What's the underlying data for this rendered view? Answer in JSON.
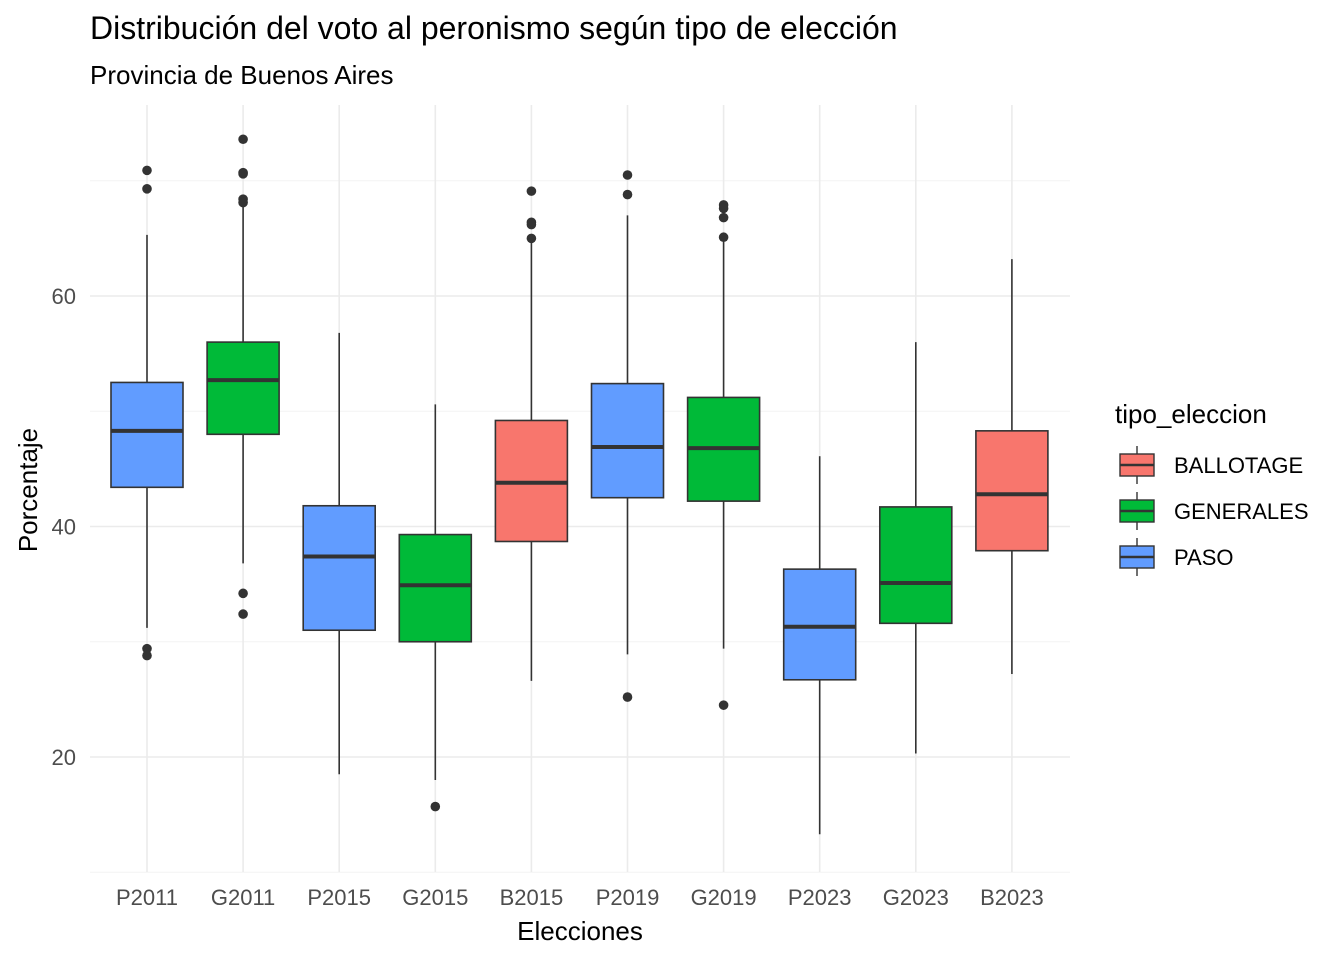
{
  "chart_data": {
    "type": "boxplot",
    "title": "Distribución del voto al peronismo según tipo de elección",
    "subtitle": "Provincia de Buenos Aires",
    "xlabel": "Elecciones",
    "ylabel": "Porcentaje",
    "ylim": [
      10,
      75
    ],
    "yticks": [
      20,
      40,
      60
    ],
    "grid": true,
    "legend": {
      "title": "tipo_eleccion",
      "position": "right",
      "items": [
        {
          "label": "BALLOTAGE",
          "color": "#F8766D"
        },
        {
          "label": "GENERALES",
          "color": "#00BA38"
        },
        {
          "label": "PASO",
          "color": "#619CFF"
        }
      ]
    },
    "categories": [
      "P2011",
      "G2011",
      "P2015",
      "G2015",
      "B2015",
      "P2019",
      "G2019",
      "P2023",
      "G2023",
      "B2023"
    ],
    "boxes": [
      {
        "category": "P2011",
        "type": "PASO",
        "whisker_low": 31.2,
        "q1": 43.4,
        "median": 48.3,
        "q3": 52.5,
        "whisker_high": 65.3,
        "outliers": [
          70.9,
          69.3,
          29.4,
          28.8
        ]
      },
      {
        "category": "G2011",
        "type": "GENERALES",
        "whisker_low": 36.8,
        "q1": 48.0,
        "median": 52.7,
        "q3": 56.0,
        "whisker_high": 67.8,
        "outliers": [
          73.6,
          70.6,
          70.7,
          68.4,
          68.1,
          34.2,
          32.4
        ]
      },
      {
        "category": "P2015",
        "type": "PASO",
        "whisker_low": 18.5,
        "q1": 31.0,
        "median": 37.4,
        "q3": 41.8,
        "whisker_high": 56.8,
        "outliers": []
      },
      {
        "category": "G2015",
        "type": "GENERALES",
        "whisker_low": 18.0,
        "q1": 30.0,
        "median": 34.9,
        "q3": 39.3,
        "whisker_high": 50.6,
        "outliers": [
          15.7
        ]
      },
      {
        "category": "B2015",
        "type": "BALLOTAGE",
        "whisker_low": 26.6,
        "q1": 38.7,
        "median": 43.8,
        "q3": 49.2,
        "whisker_high": 64.9,
        "outliers": [
          69.1,
          66.4,
          66.2,
          65.0
        ]
      },
      {
        "category": "P2019",
        "type": "PASO",
        "whisker_low": 28.9,
        "q1": 42.5,
        "median": 46.9,
        "q3": 52.4,
        "whisker_high": 67.0,
        "outliers": [
          70.5,
          68.8,
          25.2
        ]
      },
      {
        "category": "G2019",
        "type": "GENERALES",
        "whisker_low": 29.4,
        "q1": 42.2,
        "median": 46.8,
        "q3": 51.2,
        "whisker_high": 65.1,
        "outliers": [
          67.9,
          67.6,
          66.8,
          65.1,
          24.5
        ]
      },
      {
        "category": "P2023",
        "type": "PASO",
        "whisker_low": 13.3,
        "q1": 26.7,
        "median": 31.3,
        "q3": 36.3,
        "whisker_high": 46.1,
        "outliers": []
      },
      {
        "category": "G2023",
        "type": "GENERALES",
        "whisker_low": 20.3,
        "q1": 31.6,
        "median": 35.1,
        "q3": 41.7,
        "whisker_high": 56.0,
        "outliers": []
      },
      {
        "category": "B2023",
        "type": "BALLOTAGE",
        "whisker_low": 27.2,
        "q1": 37.9,
        "median": 42.8,
        "q3": 48.3,
        "whisker_high": 63.2,
        "outliers": []
      }
    ]
  }
}
